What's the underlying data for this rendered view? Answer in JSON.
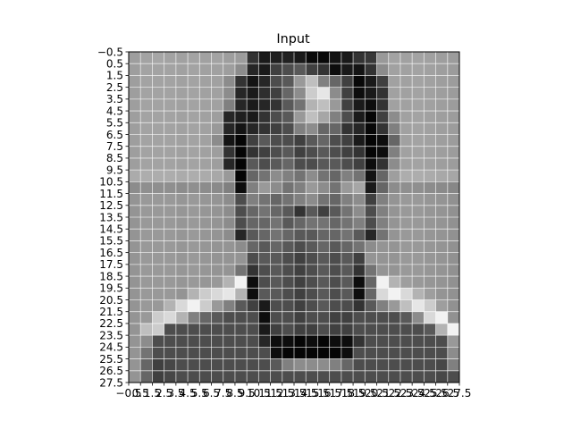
{
  "chart_data": {
    "type": "heatmap",
    "title": "Input",
    "xlabel": "",
    "ylabel": "",
    "colormap": "gray",
    "grid": true,
    "grid_color": "#ffffff",
    "xlim": [
      -0.5,
      27.5
    ],
    "ylim": [
      27.5,
      -0.5
    ],
    "x_ticks": [
      -0.5,
      0.5,
      1.5,
      2.5,
      3.5,
      4.5,
      5.5,
      6.5,
      7.5,
      8.5,
      9.5,
      10.5,
      11.5,
      12.5,
      13.5,
      14.5,
      15.5,
      16.5,
      17.5,
      18.5,
      19.5,
      20.5,
      21.5,
      22.5,
      23.5,
      24.5,
      25.5,
      26.5,
      27.5
    ],
    "x_tick_labels": [
      "−0.5",
      "0.5",
      "1.5",
      "2.5",
      "3.5",
      "4.5",
      "5.5",
      "6.5",
      "7.5",
      "8.5",
      "9.5",
      "10.5",
      "11.5",
      "12.5",
      "13.5",
      "14.5",
      "15.5",
      "16.5",
      "17.5",
      "18.5",
      "19.5",
      "20.5",
      "21.5",
      "22.5",
      "23.5",
      "24.5",
      "25.5",
      "26.5",
      "27.5"
    ],
    "y_ticks": [
      -0.5,
      0.5,
      1.5,
      2.5,
      3.5,
      4.5,
      5.5,
      6.5,
      7.5,
      8.5,
      9.5,
      10.5,
      11.5,
      12.5,
      13.5,
      14.5,
      15.5,
      16.5,
      17.5,
      18.5,
      19.5,
      20.5,
      21.5,
      22.5,
      23.5,
      24.5,
      25.5,
      26.5,
      27.5
    ],
    "y_tick_labels": [
      "−0.5",
      "0.5",
      "1.5",
      "2.5",
      "3.5",
      "4.5",
      "5.5",
      "6.5",
      "7.5",
      "8.5",
      "9.5",
      "10.5",
      "11.5",
      "12.5",
      "13.5",
      "14.5",
      "15.5",
      "16.5",
      "17.5",
      "18.5",
      "19.5",
      "20.5",
      "21.5",
      "22.5",
      "23.5",
      "24.5",
      "25.5",
      "26.5",
      "27.5"
    ],
    "values": [
      [
        0.62,
        0.64,
        0.65,
        0.64,
        0.63,
        0.64,
        0.63,
        0.64,
        0.62,
        0.61,
        0.2,
        0.1,
        0.12,
        0.13,
        0.1,
        0.04,
        0.03,
        0.08,
        0.1,
        0.2,
        0.22,
        0.6,
        0.64,
        0.63,
        0.64,
        0.63,
        0.62,
        0.61
      ],
      [
        0.62,
        0.64,
        0.64,
        0.64,
        0.63,
        0.64,
        0.63,
        0.63,
        0.62,
        0.55,
        0.15,
        0.1,
        0.25,
        0.3,
        0.35,
        0.25,
        0.2,
        0.05,
        0.1,
        0.08,
        0.2,
        0.55,
        0.63,
        0.63,
        0.64,
        0.63,
        0.62,
        0.61
      ],
      [
        0.62,
        0.64,
        0.64,
        0.64,
        0.63,
        0.64,
        0.63,
        0.63,
        0.55,
        0.2,
        0.08,
        0.15,
        0.3,
        0.35,
        0.6,
        0.75,
        0.5,
        0.4,
        0.25,
        0.03,
        0.1,
        0.25,
        0.63,
        0.63,
        0.64,
        0.63,
        0.62,
        0.61
      ],
      [
        0.62,
        0.64,
        0.64,
        0.64,
        0.63,
        0.64,
        0.63,
        0.63,
        0.55,
        0.15,
        0.1,
        0.18,
        0.25,
        0.4,
        0.55,
        0.8,
        0.9,
        0.55,
        0.25,
        0.05,
        0.1,
        0.2,
        0.63,
        0.63,
        0.64,
        0.63,
        0.62,
        0.61
      ],
      [
        0.62,
        0.64,
        0.64,
        0.64,
        0.63,
        0.64,
        0.63,
        0.63,
        0.5,
        0.15,
        0.1,
        0.15,
        0.2,
        0.35,
        0.45,
        0.7,
        0.75,
        0.6,
        0.25,
        0.1,
        0.05,
        0.2,
        0.63,
        0.63,
        0.64,
        0.63,
        0.62,
        0.61
      ],
      [
        0.62,
        0.64,
        0.64,
        0.64,
        0.63,
        0.64,
        0.63,
        0.62,
        0.15,
        0.12,
        0.1,
        0.2,
        0.3,
        0.35,
        0.6,
        0.75,
        0.65,
        0.5,
        0.3,
        0.1,
        0.02,
        0.25,
        0.55,
        0.63,
        0.64,
        0.63,
        0.62,
        0.61
      ],
      [
        0.62,
        0.64,
        0.64,
        0.64,
        0.63,
        0.64,
        0.63,
        0.6,
        0.15,
        0.08,
        0.15,
        0.2,
        0.25,
        0.3,
        0.5,
        0.55,
        0.4,
        0.4,
        0.2,
        0.15,
        0.03,
        0.2,
        0.5,
        0.63,
        0.64,
        0.63,
        0.62,
        0.61
      ],
      [
        0.62,
        0.64,
        0.64,
        0.64,
        0.63,
        0.64,
        0.63,
        0.55,
        0.08,
        0.02,
        0.25,
        0.35,
        0.3,
        0.3,
        0.25,
        0.35,
        0.4,
        0.3,
        0.25,
        0.1,
        0.02,
        0.05,
        0.4,
        0.63,
        0.64,
        0.63,
        0.62,
        0.61
      ],
      [
        0.62,
        0.64,
        0.64,
        0.64,
        0.63,
        0.64,
        0.63,
        0.62,
        0.2,
        0.02,
        0.2,
        0.25,
        0.3,
        0.35,
        0.25,
        0.3,
        0.35,
        0.3,
        0.25,
        0.2,
        0.02,
        0.05,
        0.5,
        0.63,
        0.64,
        0.63,
        0.62,
        0.61
      ],
      [
        0.62,
        0.64,
        0.64,
        0.64,
        0.63,
        0.64,
        0.63,
        0.62,
        0.15,
        0.02,
        0.35,
        0.3,
        0.35,
        0.4,
        0.3,
        0.3,
        0.35,
        0.35,
        0.3,
        0.25,
        0.05,
        0.2,
        0.55,
        0.63,
        0.64,
        0.63,
        0.62,
        0.61
      ],
      [
        0.67,
        0.68,
        0.68,
        0.68,
        0.67,
        0.68,
        0.67,
        0.66,
        0.6,
        0.02,
        0.4,
        0.45,
        0.55,
        0.5,
        0.45,
        0.55,
        0.45,
        0.4,
        0.5,
        0.45,
        0.08,
        0.4,
        0.62,
        0.68,
        0.68,
        0.67,
        0.66,
        0.65
      ],
      [
        0.55,
        0.56,
        0.56,
        0.56,
        0.55,
        0.56,
        0.55,
        0.54,
        0.5,
        0.05,
        0.5,
        0.6,
        0.55,
        0.45,
        0.5,
        0.6,
        0.55,
        0.45,
        0.6,
        0.65,
        0.1,
        0.4,
        0.55,
        0.56,
        0.56,
        0.55,
        0.54,
        0.53
      ],
      [
        0.58,
        0.6,
        0.6,
        0.6,
        0.59,
        0.6,
        0.59,
        0.58,
        0.55,
        0.3,
        0.5,
        0.45,
        0.4,
        0.45,
        0.5,
        0.55,
        0.45,
        0.4,
        0.5,
        0.55,
        0.25,
        0.5,
        0.58,
        0.6,
        0.6,
        0.59,
        0.58,
        0.57
      ],
      [
        0.58,
        0.6,
        0.6,
        0.6,
        0.59,
        0.6,
        0.59,
        0.58,
        0.55,
        0.3,
        0.4,
        0.45,
        0.4,
        0.35,
        0.2,
        0.35,
        0.25,
        0.35,
        0.45,
        0.55,
        0.3,
        0.5,
        0.58,
        0.6,
        0.6,
        0.59,
        0.58,
        0.57
      ],
      [
        0.58,
        0.6,
        0.6,
        0.6,
        0.59,
        0.6,
        0.59,
        0.58,
        0.55,
        0.3,
        0.4,
        0.4,
        0.45,
        0.35,
        0.4,
        0.45,
        0.45,
        0.4,
        0.45,
        0.5,
        0.3,
        0.5,
        0.58,
        0.6,
        0.6,
        0.59,
        0.58,
        0.57
      ],
      [
        0.58,
        0.6,
        0.6,
        0.6,
        0.59,
        0.6,
        0.59,
        0.58,
        0.55,
        0.15,
        0.35,
        0.4,
        0.45,
        0.4,
        0.35,
        0.35,
        0.4,
        0.4,
        0.45,
        0.35,
        0.15,
        0.45,
        0.58,
        0.6,
        0.6,
        0.59,
        0.58,
        0.57
      ],
      [
        0.58,
        0.6,
        0.6,
        0.6,
        0.59,
        0.6,
        0.59,
        0.58,
        0.58,
        0.55,
        0.4,
        0.35,
        0.4,
        0.35,
        0.3,
        0.35,
        0.4,
        0.35,
        0.4,
        0.45,
        0.55,
        0.58,
        0.58,
        0.6,
        0.6,
        0.59,
        0.58,
        0.57
      ],
      [
        0.58,
        0.6,
        0.6,
        0.6,
        0.59,
        0.6,
        0.59,
        0.58,
        0.58,
        0.58,
        0.3,
        0.35,
        0.35,
        0.3,
        0.25,
        0.3,
        0.35,
        0.3,
        0.35,
        0.25,
        0.58,
        0.58,
        0.58,
        0.6,
        0.6,
        0.59,
        0.58,
        0.57
      ],
      [
        0.58,
        0.6,
        0.6,
        0.6,
        0.59,
        0.6,
        0.59,
        0.58,
        0.58,
        0.45,
        0.2,
        0.3,
        0.35,
        0.3,
        0.25,
        0.3,
        0.35,
        0.3,
        0.35,
        0.2,
        0.45,
        0.58,
        0.58,
        0.6,
        0.6,
        0.59,
        0.58,
        0.57
      ],
      [
        0.58,
        0.6,
        0.6,
        0.6,
        0.59,
        0.6,
        0.59,
        0.6,
        0.7,
        0.95,
        0.05,
        0.3,
        0.35,
        0.3,
        0.25,
        0.3,
        0.35,
        0.3,
        0.35,
        0.05,
        0.4,
        0.95,
        0.7,
        0.62,
        0.6,
        0.59,
        0.58,
        0.57
      ],
      [
        0.58,
        0.6,
        0.6,
        0.6,
        0.58,
        0.7,
        0.8,
        0.85,
        0.9,
        0.7,
        0.05,
        0.35,
        0.35,
        0.3,
        0.25,
        0.3,
        0.35,
        0.3,
        0.35,
        0.05,
        0.4,
        0.85,
        0.95,
        0.85,
        0.7,
        0.62,
        0.58,
        0.57
      ],
      [
        0.58,
        0.6,
        0.6,
        0.7,
        0.85,
        0.95,
        0.8,
        0.6,
        0.5,
        0.35,
        0.25,
        0.1,
        0.3,
        0.3,
        0.25,
        0.3,
        0.35,
        0.3,
        0.3,
        0.2,
        0.35,
        0.5,
        0.6,
        0.75,
        0.9,
        0.8,
        0.62,
        0.57
      ],
      [
        0.58,
        0.6,
        0.8,
        0.85,
        0.7,
        0.5,
        0.4,
        0.35,
        0.3,
        0.3,
        0.3,
        0.05,
        0.3,
        0.3,
        0.25,
        0.3,
        0.3,
        0.25,
        0.25,
        0.3,
        0.3,
        0.3,
        0.3,
        0.35,
        0.55,
        0.85,
        0.95,
        0.57
      ],
      [
        0.58,
        0.75,
        0.8,
        0.3,
        0.3,
        0.3,
        0.3,
        0.3,
        0.3,
        0.3,
        0.3,
        0.1,
        0.25,
        0.3,
        0.25,
        0.25,
        0.3,
        0.25,
        0.25,
        0.3,
        0.3,
        0.3,
        0.3,
        0.3,
        0.3,
        0.35,
        0.7,
        0.95
      ],
      [
        0.58,
        0.55,
        0.3,
        0.3,
        0.3,
        0.3,
        0.3,
        0.3,
        0.3,
        0.3,
        0.3,
        0.15,
        0.05,
        0.05,
        0.02,
        0.05,
        0.02,
        0.05,
        0.05,
        0.2,
        0.3,
        0.3,
        0.3,
        0.3,
        0.3,
        0.3,
        0.3,
        0.6
      ],
      [
        0.58,
        0.45,
        0.3,
        0.3,
        0.3,
        0.3,
        0.3,
        0.3,
        0.3,
        0.3,
        0.3,
        0.3,
        0.05,
        0.02,
        0.02,
        0.02,
        0.02,
        0.02,
        0.05,
        0.3,
        0.3,
        0.3,
        0.3,
        0.3,
        0.3,
        0.3,
        0.3,
        0.55
      ],
      [
        0.58,
        0.4,
        0.25,
        0.28,
        0.3,
        0.3,
        0.3,
        0.3,
        0.3,
        0.3,
        0.3,
        0.3,
        0.35,
        0.5,
        0.55,
        0.55,
        0.55,
        0.5,
        0.4,
        0.3,
        0.3,
        0.3,
        0.3,
        0.3,
        0.3,
        0.3,
        0.28,
        0.5
      ],
      [
        0.58,
        0.4,
        0.25,
        0.28,
        0.3,
        0.3,
        0.3,
        0.3,
        0.3,
        0.3,
        0.3,
        0.3,
        0.3,
        0.3,
        0.3,
        0.3,
        0.3,
        0.3,
        0.3,
        0.3,
        0.3,
        0.3,
        0.3,
        0.3,
        0.3,
        0.3,
        0.28,
        0.3
      ]
    ]
  }
}
